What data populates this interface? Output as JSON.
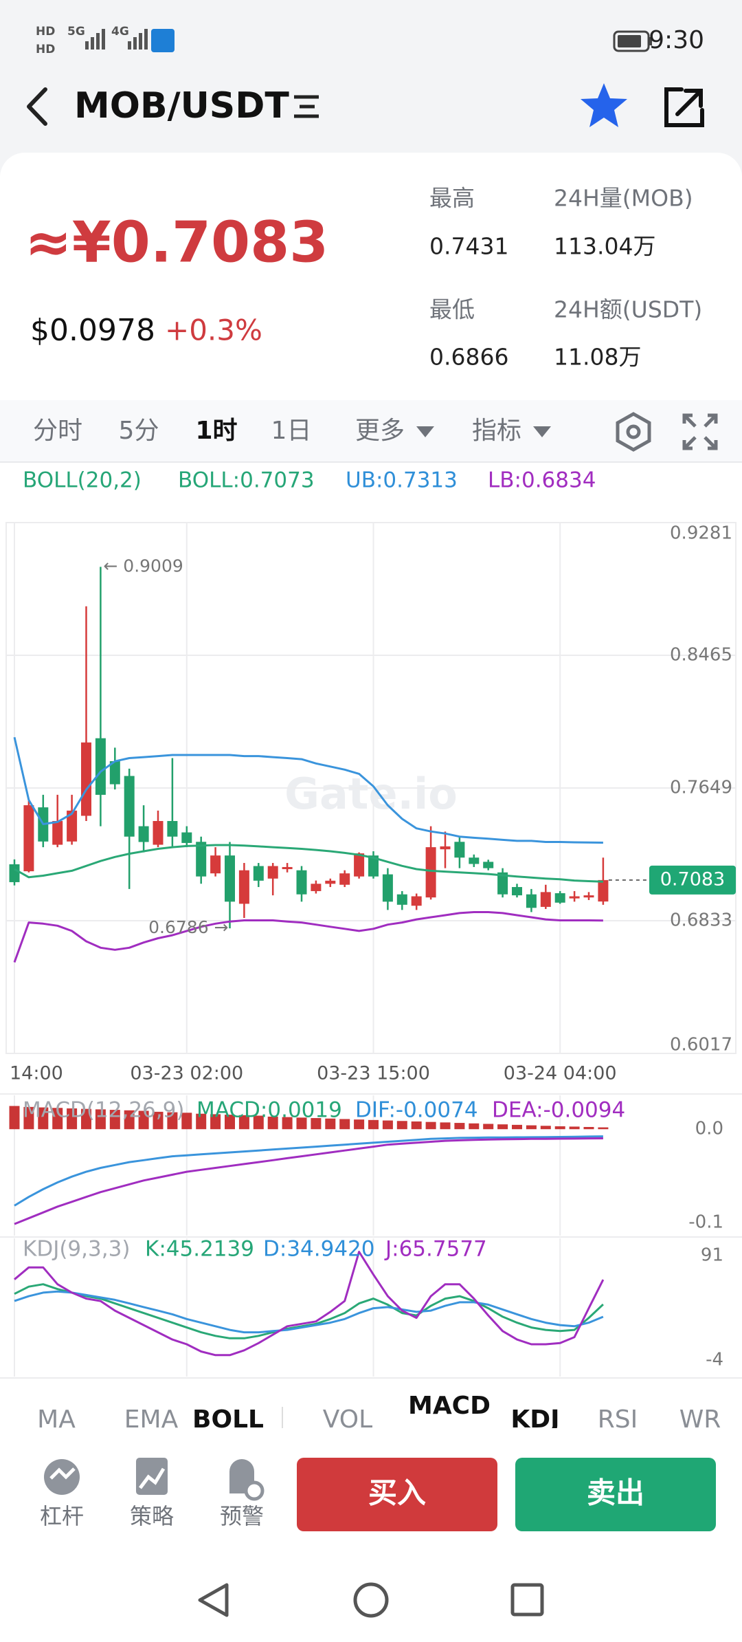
{
  "status_bar": {
    "time": "9:30",
    "hd_1": "HD",
    "hd_2": "HD",
    "network_1": "5G",
    "network_2": "4G"
  },
  "header": {
    "title": "MOB/USDT"
  },
  "price": {
    "cny": "≈¥0.7083",
    "usd": "$0.0978",
    "change": "+0.3%"
  },
  "stats": {
    "high_label": "最高",
    "high": 0.7431,
    "volume_label": "24H量(MOB)",
    "volume": "113.04万",
    "low_label": "最低",
    "low": 0.6866,
    "turnover_label": "24H额(USDT)",
    "turnover": "11.08万"
  },
  "tabs": [
    {
      "label": "分时"
    },
    {
      "label": "5分"
    },
    {
      "label": "1时",
      "active": true
    },
    {
      "label": "1日"
    },
    {
      "label": "更多"
    },
    {
      "label": "指标"
    }
  ],
  "indicator_tabs": [
    {
      "label": "MA"
    },
    {
      "label": "EMA"
    },
    {
      "label": "BOLL",
      "active": true
    },
    {
      "label": "VOL"
    },
    {
      "label": "MACD",
      "active": true
    },
    {
      "label": "KDJ",
      "active": true
    },
    {
      "label": "RSI"
    },
    {
      "label": "WR"
    }
  ],
  "actions": {
    "leverage": "杠杆",
    "strategy": "策略",
    "alert": "预警",
    "buy": "买入",
    "sell": "卖出"
  },
  "watermark": "Gate.io",
  "chart_data": [
    {
      "type": "candlestick",
      "legend": [
        {
          "text": "BOLL(20,2)",
          "color": "#26a677"
        },
        {
          "text": "BOLL:0.7073",
          "color": "#26a677"
        },
        {
          "text": "UB:0.7313",
          "color": "#2f8fd8"
        },
        {
          "text": "LB:0.6834",
          "color": "#a12dc0"
        }
      ],
      "categories": [
        "14:00",
        null,
        null,
        null,
        null,
        null,
        null,
        null,
        null,
        null,
        null,
        null,
        "03-23 02:00",
        null,
        null,
        null,
        null,
        null,
        null,
        null,
        null,
        null,
        null,
        null,
        null,
        "03-23 15:00",
        null,
        null,
        null,
        null,
        null,
        null,
        null,
        null,
        null,
        null,
        null,
        null,
        "03-24 04:00",
        null,
        null,
        null
      ],
      "open": [
        0.718,
        0.7137,
        0.753,
        0.73,
        0.732,
        0.7478,
        0.7955,
        0.7814,
        0.7723,
        0.7414,
        0.73,
        0.7446,
        0.7376,
        0.7318,
        0.7124,
        0.7234,
        0.6937,
        0.7169,
        0.7092,
        0.715,
        0.7143,
        0.7015,
        0.706,
        0.7054,
        0.7105,
        0.7234,
        0.7118,
        0.6995,
        0.6925,
        0.6976,
        0.7272,
        0.7318,
        0.7221,
        0.7195,
        0.713,
        0.704,
        0.6995,
        0.6918,
        0.7002,
        0.697,
        0.6976,
        0.6951
      ],
      "high": [
        0.721,
        0.757,
        0.7607,
        0.7607,
        0.7607,
        0.8766,
        0.9009,
        0.7897,
        0.7768,
        0.7543,
        0.751,
        0.7833,
        0.7414,
        0.735,
        0.7285,
        0.7317,
        0.7188,
        0.7188,
        0.7188,
        0.7188,
        0.7169,
        0.708,
        0.7092,
        0.7143,
        0.7253,
        0.726,
        0.7156,
        0.7015,
        0.7,
        0.7414,
        0.7381,
        0.735,
        0.724,
        0.7208,
        0.7156,
        0.706,
        0.7028,
        0.7054,
        0.7015,
        0.7015,
        0.7009,
        0.7221
      ],
      "low": [
        0.705,
        0.713,
        0.7285,
        0.7285,
        0.73,
        0.7446,
        0.7414,
        0.764,
        0.7028,
        0.7253,
        0.7285,
        0.7285,
        0.7285,
        0.706,
        0.7105,
        0.6786,
        0.685,
        0.704,
        0.6989,
        0.713,
        0.695,
        0.7,
        0.704,
        0.704,
        0.7092,
        0.7092,
        0.6899,
        0.6899,
        0.6899,
        0.6963,
        0.7156,
        0.7156,
        0.7163,
        0.7143,
        0.6976,
        0.6976,
        0.6886,
        0.6905,
        0.6937,
        0.695,
        0.696,
        0.6931
      ],
      "close": [
        0.707,
        0.7543,
        0.732,
        0.7446,
        0.751,
        0.7929,
        0.7607,
        0.7672,
        0.735,
        0.7317,
        0.7446,
        0.735,
        0.7311,
        0.7105,
        0.7234,
        0.695,
        0.7143,
        0.7079,
        0.7169,
        0.7163,
        0.6995,
        0.706,
        0.7079,
        0.7124,
        0.7247,
        0.7105,
        0.695,
        0.6931,
        0.6983,
        0.7285,
        0.729,
        0.7221,
        0.7182,
        0.7156,
        0.6995,
        0.6989,
        0.6912,
        0.7009,
        0.6944,
        0.6983,
        0.6989,
        0.7083
      ],
      "up_color": "#d63b3b",
      "down_color": "#22a06b",
      "last_price_color": "#1fa774",
      "high_label": "← 0.9009",
      "low_label": "0.6786 →",
      "series": [
        {
          "color": "#3a94dc",
          "values": [
            0.7961,
            0.7575,
            0.7427,
            0.744,
            0.7491,
            0.7639,
            0.7749,
            0.7813,
            0.7833,
            0.7839,
            0.7845,
            0.7852,
            0.7852,
            0.7852,
            0.7852,
            0.7852,
            0.7845,
            0.7845,
            0.7839,
            0.7833,
            0.7826,
            0.78,
            0.7781,
            0.7762,
            0.7736,
            0.7659,
            0.7543,
            0.7459,
            0.7401,
            0.7382,
            0.7369,
            0.735,
            0.7343,
            0.7337,
            0.733,
            0.7324,
            0.7324,
            0.7317,
            0.7317,
            0.7315,
            0.7314,
            0.7313
          ]
        },
        {
          "color": "#2aa876",
          "values": [
            0.715,
            0.71,
            0.711,
            0.7125,
            0.714,
            0.717,
            0.72,
            0.7225,
            0.7245,
            0.726,
            0.7275,
            0.7285,
            0.7292,
            0.7295,
            0.7298,
            0.7298,
            0.7295,
            0.729,
            0.7285,
            0.728,
            0.7275,
            0.7268,
            0.726,
            0.725,
            0.7238,
            0.722,
            0.7195,
            0.717,
            0.715,
            0.714,
            0.7135,
            0.713,
            0.7125,
            0.712,
            0.7112,
            0.7105,
            0.7098,
            0.7092,
            0.7088,
            0.708,
            0.7076,
            0.7073
          ]
        },
        {
          "color": "#a02dc0",
          "values": [
            0.6577,
            0.6822,
            0.6815,
            0.6802,
            0.677,
            0.6706,
            0.6667,
            0.6654,
            0.6667,
            0.6699,
            0.6725,
            0.6744,
            0.677,
            0.6796,
            0.6815,
            0.6828,
            0.6835,
            0.6835,
            0.6835,
            0.6828,
            0.6822,
            0.6809,
            0.6796,
            0.6783,
            0.677,
            0.6783,
            0.6809,
            0.6822,
            0.6841,
            0.6854,
            0.6867,
            0.688,
            0.6886,
            0.6886,
            0.688,
            0.6867,
            0.6854,
            0.6841,
            0.6835,
            0.6835,
            0.6835,
            0.6834
          ]
        }
      ],
      "ylim": [
        0.6017,
        0.9281
      ],
      "yticks": [
        0.9281,
        0.8465,
        0.7649,
        0.6833,
        0.6017
      ],
      "grid": true
    },
    {
      "type": "macd",
      "legend": [
        {
          "text": "MACD(12,26,9)",
          "color": "#a3a7ae"
        },
        {
          "text": "MACD:0.0019",
          "color": "#26a677"
        },
        {
          "text": "DIF:-0.0074",
          "color": "#2f8fd8"
        },
        {
          "text": "DEA:-0.0094",
          "color": "#a12dc0"
        }
      ],
      "values": [
        0.024,
        0.023,
        0.0225,
        0.022,
        0.0215,
        0.021,
        0.0205,
        0.02,
        0.0195,
        0.019,
        0.018,
        0.0175,
        0.017,
        0.016,
        0.0155,
        0.015,
        0.0145,
        0.014,
        0.013,
        0.0125,
        0.012,
        0.0115,
        0.011,
        0.0105,
        0.01,
        0.0095,
        0.009,
        0.0085,
        0.008,
        0.0075,
        0.007,
        0.0065,
        0.006,
        0.0055,
        0.005,
        0.0045,
        0.004,
        0.0035,
        0.003,
        0.0027,
        0.0023,
        0.0019
      ],
      "up_color": "#c93535",
      "down_color": "#22a06b",
      "series": [
        {
          "color": "#3a94dc",
          "values": [
            -0.079,
            -0.07,
            -0.062,
            -0.055,
            -0.049,
            -0.044,
            -0.04,
            -0.037,
            -0.034,
            -0.032,
            -0.03,
            -0.028,
            -0.027,
            -0.026,
            -0.025,
            -0.024,
            -0.023,
            -0.022,
            -0.021,
            -0.02,
            -0.019,
            -0.018,
            -0.017,
            -0.016,
            -0.015,
            -0.014,
            -0.013,
            -0.012,
            -0.011,
            -0.01,
            -0.0095,
            -0.009,
            -0.0088,
            -0.0086,
            -0.0085,
            -0.0084,
            -0.0083,
            -0.0082,
            -0.008,
            -0.0078,
            -0.0076,
            -0.0074
          ]
        },
        {
          "color": "#a02dc0",
          "values": [
            -0.098,
            -0.092,
            -0.086,
            -0.08,
            -0.075,
            -0.07,
            -0.065,
            -0.061,
            -0.057,
            -0.053,
            -0.05,
            -0.047,
            -0.044,
            -0.042,
            -0.04,
            -0.038,
            -0.036,
            -0.034,
            -0.032,
            -0.03,
            -0.028,
            -0.026,
            -0.024,
            -0.022,
            -0.02,
            -0.018,
            -0.016,
            -0.015,
            -0.014,
            -0.013,
            -0.012,
            -0.0115,
            -0.011,
            -0.0107,
            -0.0104,
            -0.0102,
            -0.01,
            -0.0099,
            -0.0098,
            -0.0097,
            -0.0095,
            -0.0094
          ]
        }
      ],
      "ylim": [
        -0.105,
        0.03
      ],
      "yticks": [
        {
          "value": 0,
          "label": "0.0"
        },
        -0.1
      ],
      "grid": false
    },
    {
      "type": "line",
      "legend": [
        {
          "text": "KDJ(9,3,3)",
          "color": "#a3a7ae"
        },
        {
          "text": "K:45.2139",
          "color": "#26a677"
        },
        {
          "text": "D:34.9420",
          "color": "#2f8fd8"
        },
        {
          "text": "J:65.7577",
          "color": "#a12dc0"
        }
      ],
      "series": [
        {
          "color": "#2aa876",
          "values": [
            54,
            60,
            62,
            58,
            55,
            52,
            50,
            46,
            42,
            38,
            34,
            30,
            26,
            22,
            19,
            17,
            17,
            19,
            22,
            25,
            27,
            29,
            33,
            38,
            46,
            50,
            45,
            38,
            36,
            44,
            50,
            52,
            48,
            42,
            35,
            30,
            26,
            24,
            23,
            24,
            34,
            45.2139
          ]
        },
        {
          "color": "#3a94dc",
          "values": [
            48,
            52,
            55,
            56,
            55,
            53,
            51,
            49,
            46,
            43,
            40,
            37,
            33,
            30,
            27,
            24,
            22,
            22,
            23,
            24,
            26,
            28,
            30,
            33,
            38,
            42,
            43,
            41,
            39,
            40,
            44,
            47,
            47,
            45,
            41,
            37,
            33,
            30,
            28,
            27,
            30,
            34.942
          ]
        },
        {
          "color": "#a02dc0",
          "values": [
            66,
            76,
            76,
            62,
            55,
            50,
            48,
            40,
            34,
            28,
            22,
            16,
            12,
            6,
            3,
            3,
            7,
            13,
            20,
            27,
            29,
            31,
            39,
            48,
            89,
            70,
            52,
            40,
            34,
            52,
            62,
            62,
            50,
            36,
            23,
            16,
            12,
            12,
            13,
            18,
            42,
            65.7577
          ]
        }
      ],
      "ylim": [
        -8,
        95
      ],
      "yticks": [
        91,
        -4
      ],
      "grid": false
    }
  ]
}
